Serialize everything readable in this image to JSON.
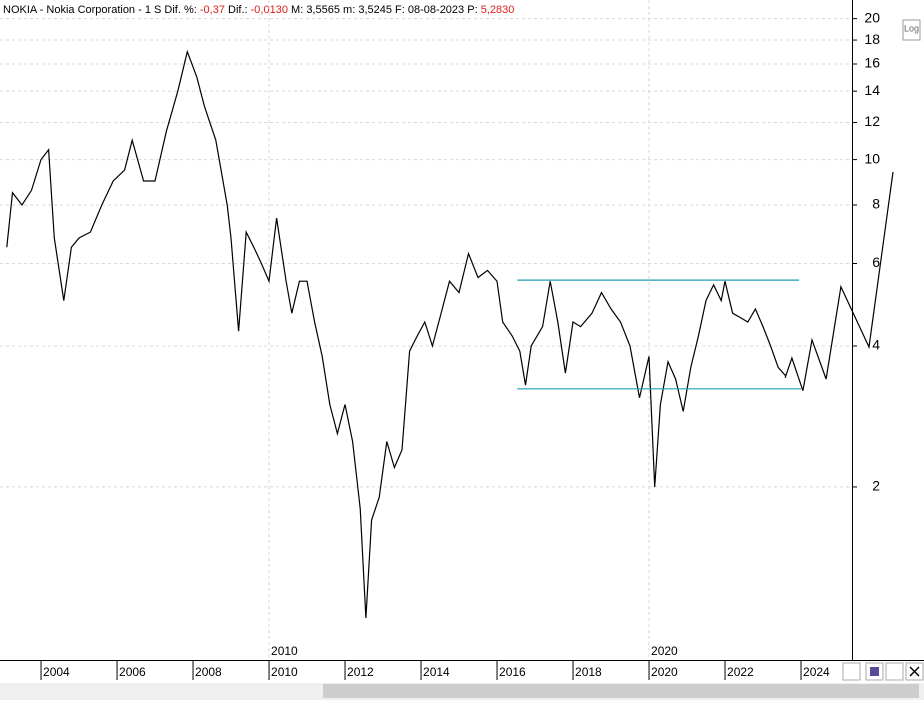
{
  "chart_data": {
    "type": "line",
    "title": "NOKIA - Nokia Corporation - 1 S",
    "header": [
      {
        "label": "Dif. %:",
        "value": "-0,37",
        "color": "#e02020"
      },
      {
        "label": "Dif.:",
        "value": "-0,0130",
        "color": "#e02020"
      },
      {
        "label": "M:",
        "value": "3,5565",
        "color": "#000000"
      },
      {
        "label": "m:",
        "value": "3,5245",
        "color": "#000000"
      },
      {
        "label": "F:",
        "value": "08-08-2023",
        "color": "#000000"
      },
      {
        "label": "P:",
        "value": "5,2830",
        "color": "#e02020"
      }
    ],
    "log_button": "Log",
    "ylog": true,
    "xlim": [
      2002.92,
      2027.21
    ],
    "ylim": [
      0.854,
      20.36
    ],
    "yticks": [
      2,
      4,
      6,
      8,
      10,
      12,
      14,
      16,
      18,
      20
    ],
    "xticks": [
      2004,
      2006,
      2008,
      2010,
      2012,
      2014,
      2016,
      2018,
      2020,
      2022,
      2024
    ],
    "decade_lines": [
      2010,
      2020
    ],
    "grid": true,
    "series": [
      {
        "name": "NOKIA",
        "color": "#000000",
        "x": [
          2003.1,
          2003.25,
          2003.5,
          2003.75,
          2004.0,
          2004.2,
          2004.35,
          2004.6,
          2004.8,
          2005.0,
          2005.3,
          2005.6,
          2005.9,
          2006.2,
          2006.4,
          2006.7,
          2007.0,
          2007.3,
          2007.6,
          2007.85,
          2008.1,
          2008.3,
          2008.6,
          2008.9,
          2009.0,
          2009.2,
          2009.4,
          2009.6,
          2009.8,
          2010.0,
          2010.2,
          2010.45,
          2010.6,
          2010.8,
          2011.0,
          2011.2,
          2011.4,
          2011.6,
          2011.8,
          2012.0,
          2012.2,
          2012.4,
          2012.55,
          2012.7,
          2012.9,
          2013.1,
          2013.3,
          2013.5,
          2013.7,
          2013.9,
          2014.1,
          2014.3,
          2014.5,
          2014.75,
          2015.0,
          2015.25,
          2015.5,
          2015.75,
          2016.0,
          2016.15,
          2016.4,
          2016.6,
          2016.75,
          2016.9,
          2017.2,
          2017.4,
          2017.6,
          2017.8,
          2018.0,
          2018.2,
          2018.5,
          2018.75,
          2019.0,
          2019.25,
          2019.5,
          2019.75,
          2020.0,
          2020.15,
          2020.3,
          2020.5,
          2020.7,
          2020.9,
          2021.1,
          2021.3,
          2021.5,
          2021.7,
          2021.9,
          2022.0,
          2022.2,
          2022.4,
          2022.6,
          2022.8,
          2023.0,
          2023.2,
          2023.4,
          2023.6
        ],
        "values": [
          6.5,
          8.5,
          8.0,
          8.6,
          10.0,
          10.5,
          6.8,
          5.0,
          6.5,
          6.8,
          7.0,
          8.0,
          9.0,
          9.5,
          11.0,
          9.0,
          9.0,
          11.5,
          14.0,
          17.0,
          15,
          13,
          11,
          8,
          6.8,
          4.3,
          7.0,
          6.5,
          6.0,
          5.5,
          7.5,
          5.5,
          4.7,
          5.5,
          5.5,
          4.5,
          3.8,
          3.0,
          2.6,
          3.0,
          2.5,
          1.8,
          1.05,
          1.7,
          1.9,
          2.5,
          2.2,
          2.4,
          3.9,
          4.2,
          4.5,
          4.0,
          4.6,
          5.5,
          5.2,
          6.3,
          5.6,
          5.8,
          5.5,
          4.5,
          4.2,
          3.9,
          3.3,
          4.0,
          4.4,
          5.5,
          4.5,
          3.5,
          4.5,
          4.4,
          4.7,
          5.2,
          4.8,
          4.5,
          4.0,
          3.1,
          3.8,
          2.0,
          3.0,
          3.7,
          3.4,
          2.9,
          3.6,
          4.2,
          5.0,
          5.4,
          5.0,
          5.5,
          4.7,
          4.6,
          4.5,
          4.8,
          4.4,
          4.0,
          3.6,
          3.45
        ]
      },
      {
        "name": "Resistance",
        "color": "#1a9fb5",
        "x": [
          2016.53,
          2023.95
        ],
        "values": [
          5.53,
          5.53
        ]
      },
      {
        "name": "Support",
        "color": "#1a9fb5",
        "x": [
          2016.53,
          2024.0
        ],
        "values": [
          3.24,
          3.24
        ]
      },
      {
        "name": "Projection",
        "color": "#000000",
        "x": [
          2023.58,
          2023.76,
          2024.05,
          2024.29,
          2024.66,
          2025.05,
          2025.79,
          2026.42
        ],
        "values": [
          3.42,
          3.77,
          3.21,
          4.12,
          3.4,
          5.35,
          3.98,
          9.41
        ]
      }
    ]
  }
}
